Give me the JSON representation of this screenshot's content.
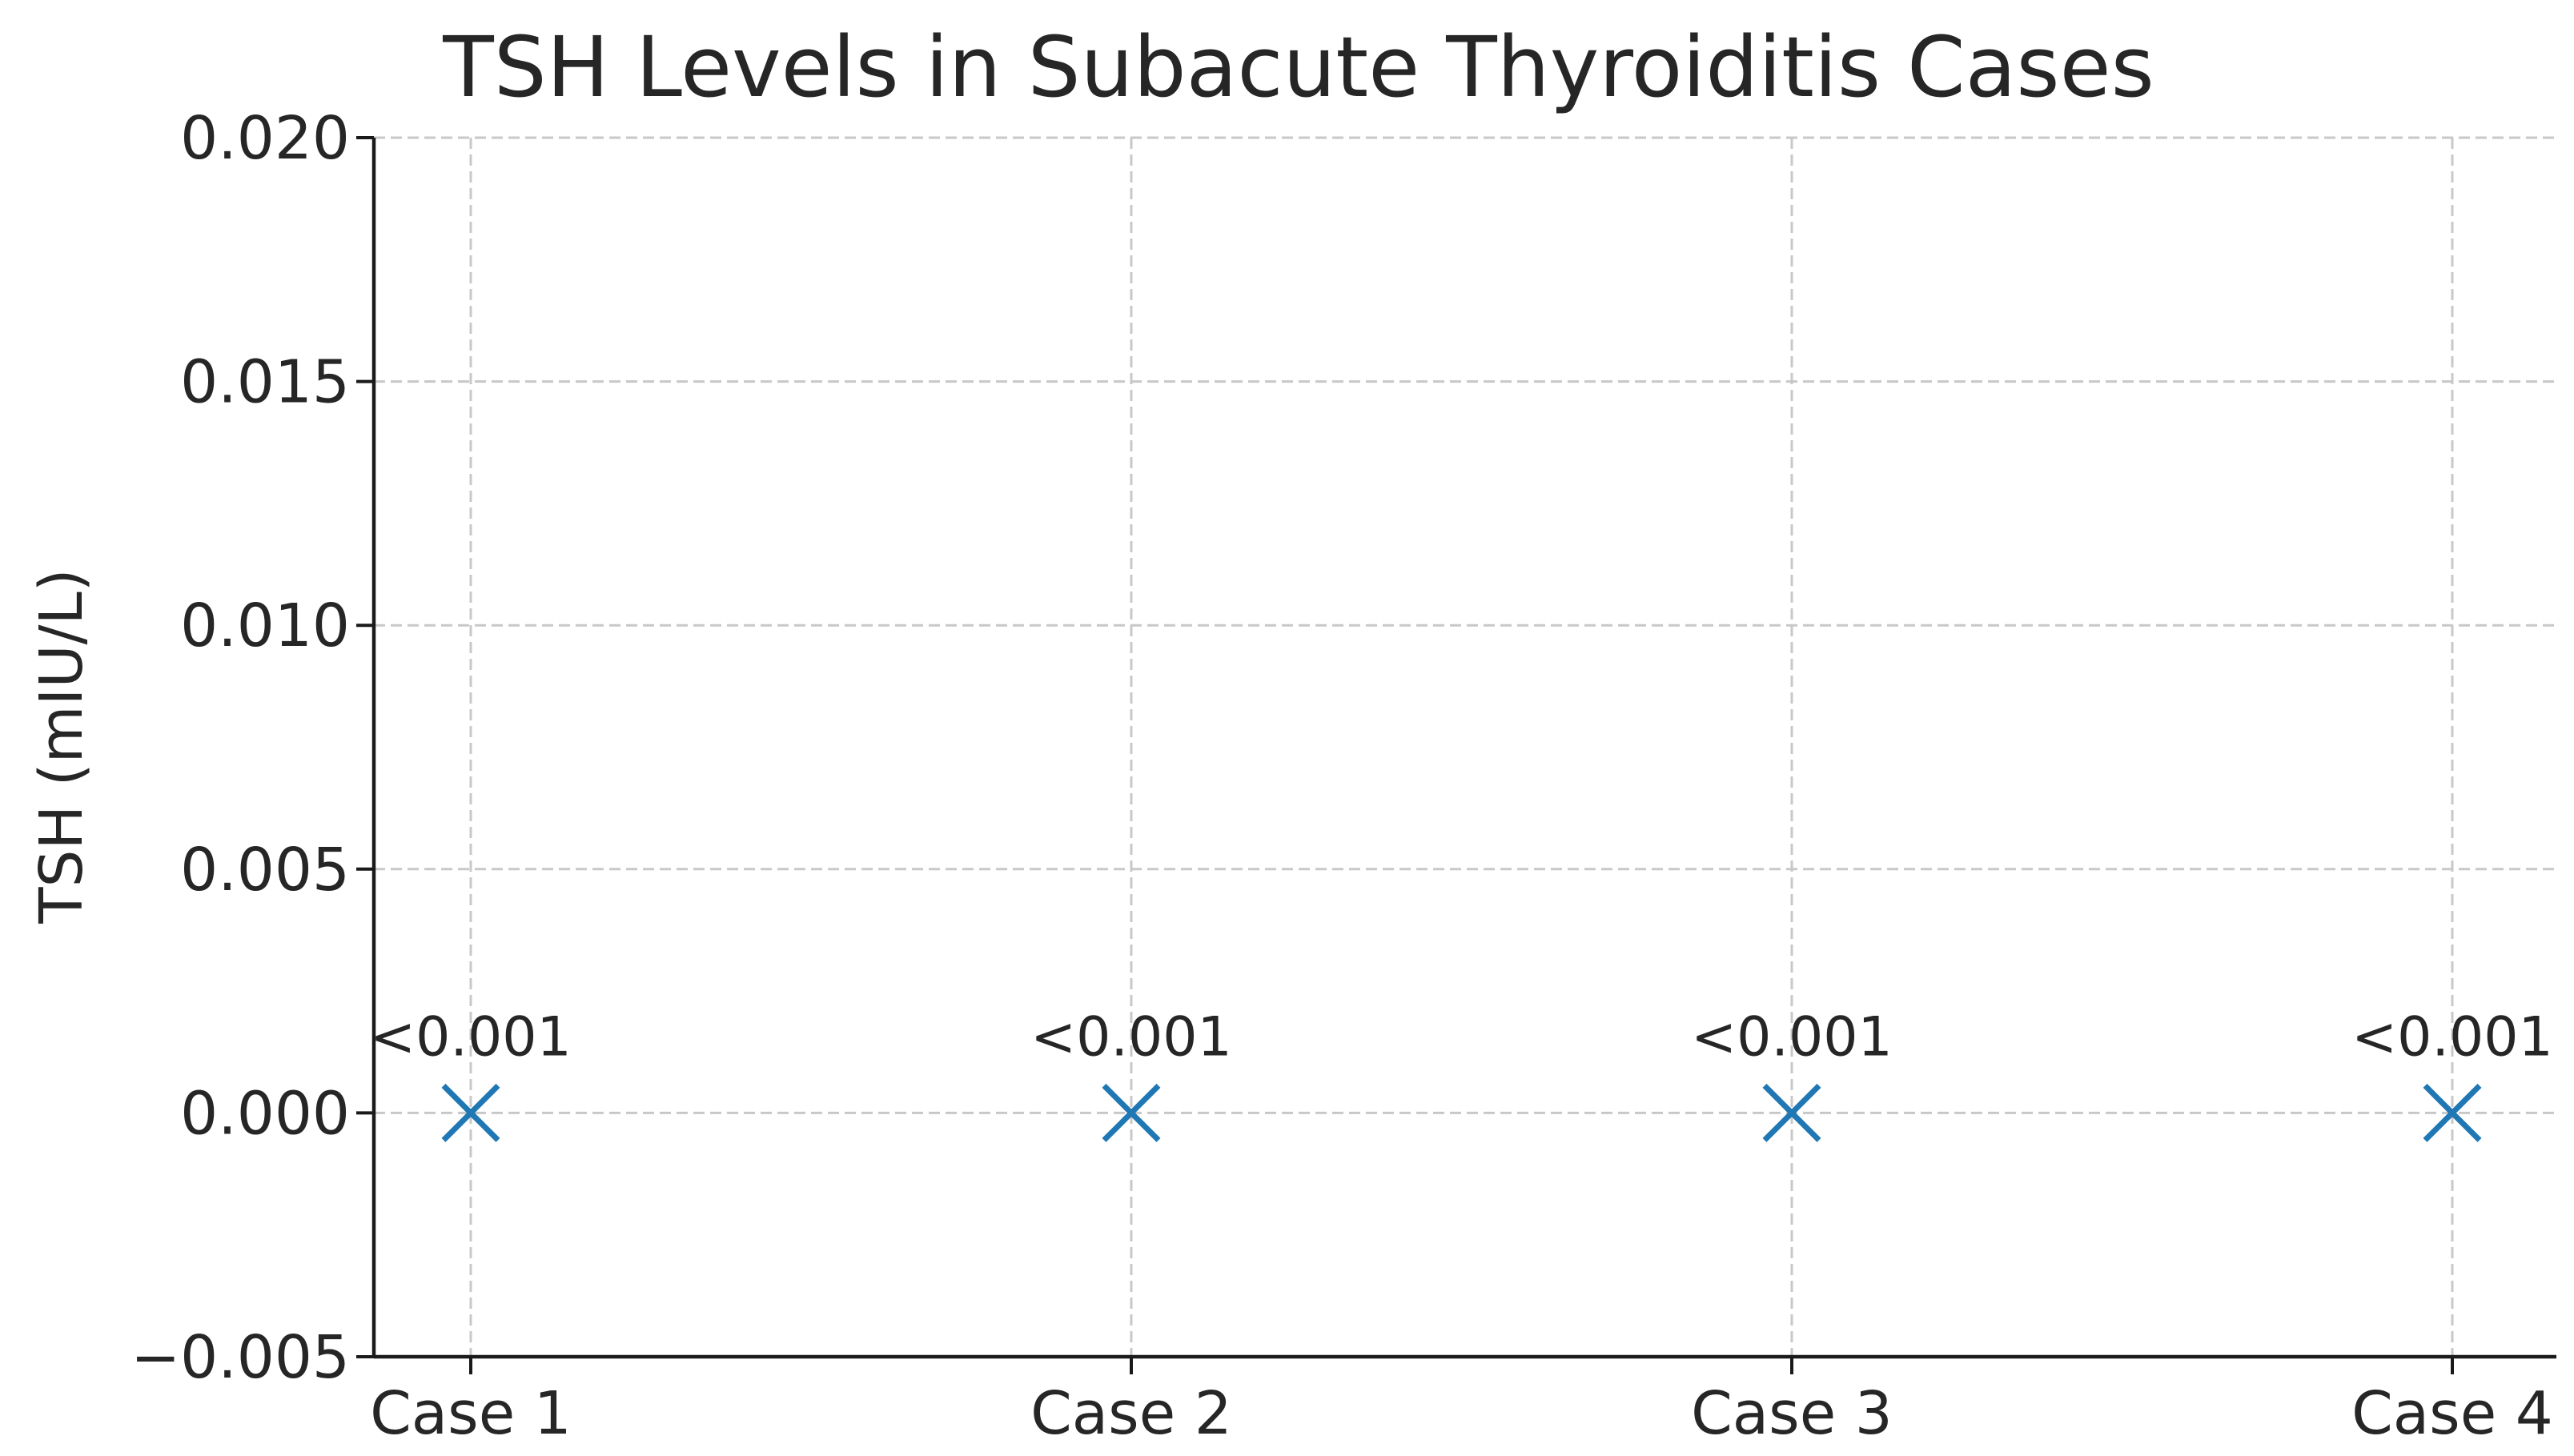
{
  "chart_data": {
    "type": "scatter",
    "title": "TSH Levels in Subacute Thyroiditis Cases",
    "xlabel": "",
    "ylabel": "TSH (mIU/L)",
    "categories": [
      "Case 1",
      "Case 2",
      "Case 3",
      "Case 4"
    ],
    "values": [
      0,
      0,
      0,
      0
    ],
    "point_labels": [
      "<0.001",
      "<0.001",
      "<0.001",
      "<0.001"
    ],
    "ylim": [
      -0.005,
      0.02
    ],
    "yticks": [
      "−0.005",
      "0.000",
      "0.005",
      "0.010",
      "0.015",
      "0.020"
    ],
    "marker": "x",
    "marker_color": "#1f77b4",
    "grid": true,
    "legend": "none"
  }
}
